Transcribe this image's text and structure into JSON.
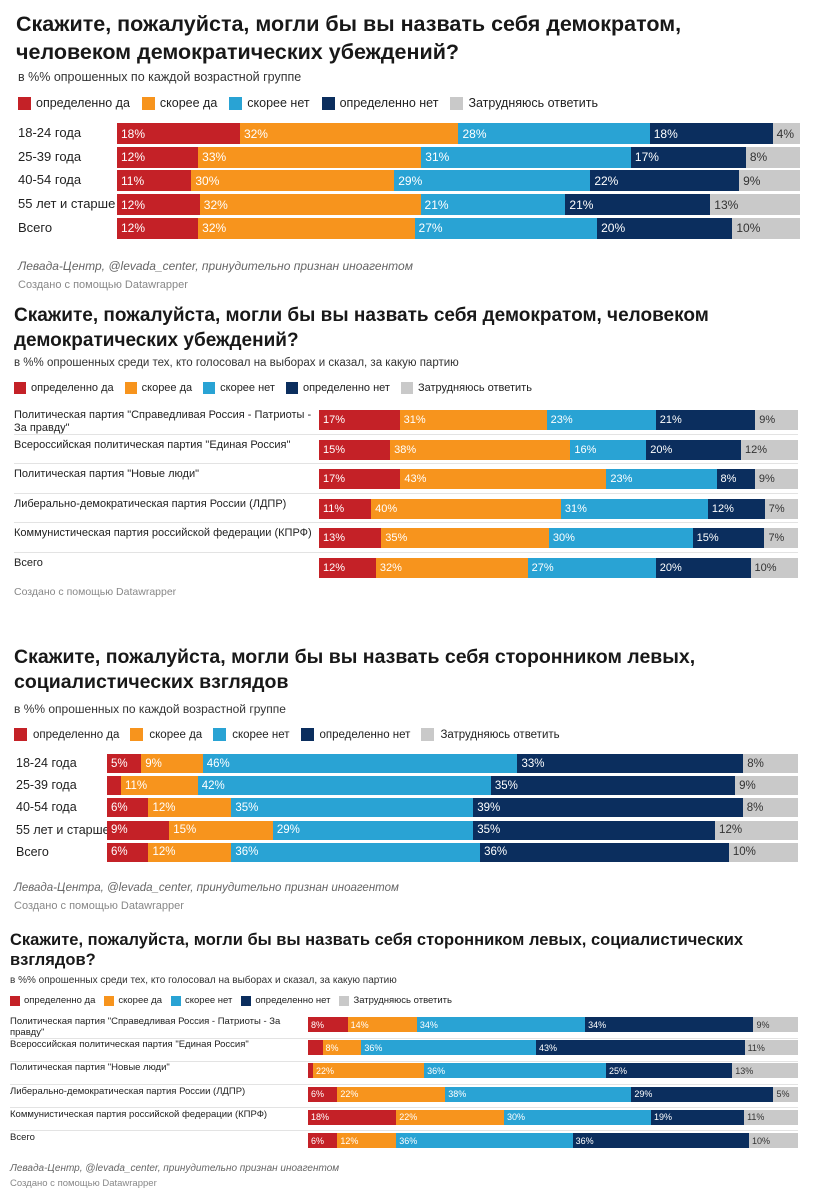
{
  "colors": {
    "definitely_yes": "#c42127",
    "rather_yes": "#f7941d",
    "rather_no": "#29a3d4",
    "definitely_no": "#0b2e5e",
    "hard_to_say": "#c9c9c9"
  },
  "legend": [
    "определенно да",
    "скорее да",
    "скорее нет",
    "определенно нет",
    "Затрудняюсь ответить"
  ],
  "chart_data": [
    {
      "type": "bar",
      "stacked": true,
      "orientation": "horizontal",
      "title": "Скажите, пожалуйста, могли бы вы назвать себя демократом, человеком демократических убеждений?",
      "subtitle": "в %% опрошенных по каждой возрастной группе",
      "categories": [
        "18-24 года",
        "25-39 года",
        "40-54 года",
        "55 лет и старше",
        "Всего"
      ],
      "series": [
        {
          "name": "определенно да",
          "values": [
            18,
            12,
            11,
            12,
            12
          ]
        },
        {
          "name": "скорее да",
          "values": [
            32,
            33,
            30,
            32,
            32
          ]
        },
        {
          "name": "скорее нет",
          "values": [
            28,
            31,
            29,
            21,
            27
          ]
        },
        {
          "name": "определенно нет",
          "values": [
            18,
            17,
            22,
            21,
            20
          ]
        },
        {
          "name": "Затрудняюсь ответить",
          "values": [
            4,
            8,
            9,
            13,
            10
          ]
        }
      ],
      "source": "Левада-Центр, @levada_center, принудительно признан иноагентом",
      "credit": "Создано с помощью Datawrapper"
    },
    {
      "type": "bar",
      "stacked": true,
      "orientation": "horizontal",
      "title": "Скажите, пожалуйста, могли бы вы назвать себя демократом, человеком демократических убеждений?",
      "subtitle": "в %% опрошенных среди тех, кто голосовал на выборах и сказал, за какую партию",
      "categories": [
        "Политическая партия \"Справедливая Россия - Патриоты - За правду\"",
        "Всероссийская политическая партия \"Единая Россия\"",
        "Политическая партия \"Новые люди\"",
        "Либерально-демократическая партия России (ЛДПР)",
        "Коммунистическая партия российской федерации (КПРФ)",
        "Всего"
      ],
      "series": [
        {
          "name": "определенно да",
          "values": [
            17,
            15,
            17,
            11,
            13,
            12
          ]
        },
        {
          "name": "скорее да",
          "values": [
            31,
            38,
            43,
            40,
            35,
            32
          ]
        },
        {
          "name": "скорее нет",
          "values": [
            23,
            16,
            23,
            31,
            30,
            27
          ]
        },
        {
          "name": "определенно нет",
          "values": [
            21,
            20,
            8,
            12,
            15,
            20
          ]
        },
        {
          "name": "Затрудняюсь ответить",
          "values": [
            9,
            12,
            9,
            7,
            7,
            10
          ]
        }
      ],
      "source": "",
      "credit": "Создано с помощью Datawrapper"
    },
    {
      "type": "bar",
      "stacked": true,
      "orientation": "horizontal",
      "title": "Скажите, пожалуйста, могли бы вы назвать себя сторонником левых, социалистических взглядов",
      "subtitle": "в %% опрошенных по каждой возрастной группе",
      "categories": [
        "18-24 года",
        "25-39 года",
        "40-54 года",
        "55 лет и старше",
        "Всего"
      ],
      "series": [
        {
          "name": "определенно да",
          "values": [
            5,
            2,
            6,
            9,
            6
          ]
        },
        {
          "name": "скорее да",
          "values": [
            9,
            11,
            12,
            15,
            12
          ]
        },
        {
          "name": "скорее нет",
          "values": [
            46,
            42,
            35,
            29,
            36
          ]
        },
        {
          "name": "определенно нет",
          "values": [
            33,
            35,
            39,
            35,
            36
          ]
        },
        {
          "name": "Затрудняюсь ответить",
          "values": [
            8,
            9,
            8,
            12,
            10
          ]
        }
      ],
      "labels": [
        [
          "5%",
          "9%",
          "46%",
          "33%",
          "8%"
        ],
        [
          "",
          "11%",
          "42%",
          "35%",
          "9%"
        ],
        [
          "6%",
          "12%",
          "35%",
          "39%",
          "8%"
        ],
        [
          "9%",
          "15%",
          "29%",
          "35%",
          "12%"
        ],
        [
          "6%",
          "12%",
          "36%",
          "36%",
          "10%"
        ]
      ],
      "source": "Левада-Центра, @levada_center, принудительно признан иноагентом",
      "credit": "Создано с помощью Datawrapper"
    },
    {
      "type": "bar",
      "stacked": true,
      "orientation": "horizontal",
      "title": "Скажите, пожалуйста, могли бы вы назвать себя сторонником левых, социалистических взглядов?",
      "subtitle": "в %% опрошенных среди тех, кто голосовал на выборах и сказал, за какую партию",
      "categories": [
        "Политическая партия \"Справедливая Россия - Патриоты - За правду\"",
        "Всероссийская политическая партия \"Единая Россия\"",
        "Политическая партия \"Новые люди\"",
        "Либерально-демократическая партия России (ЛДПР)",
        "Коммунистическая партия российской федерации (КПРФ)",
        "Всего"
      ],
      "series": [
        {
          "name": "определенно да",
          "values": [
            8,
            3,
            1,
            6,
            18,
            6
          ]
        },
        {
          "name": "скорее да",
          "values": [
            14,
            8,
            22,
            22,
            22,
            12
          ]
        },
        {
          "name": "скорее нет",
          "values": [
            34,
            36,
            36,
            38,
            30,
            36
          ]
        },
        {
          "name": "определенно нет",
          "values": [
            34,
            43,
            25,
            29,
            19,
            36
          ]
        },
        {
          "name": "Затрудняюсь ответить",
          "values": [
            9,
            11,
            13,
            5,
            11,
            10
          ]
        }
      ],
      "labels": [
        [
          "8%",
          "14%",
          "34%",
          "34%",
          "9%"
        ],
        [
          "",
          "8%",
          "36%",
          "43%",
          "11%"
        ],
        [
          "",
          "22%",
          "36%",
          "25%",
          "13%"
        ],
        [
          "6%",
          "22%",
          "38%",
          "29%",
          "5%"
        ],
        [
          "18%",
          "22%",
          "30%",
          "19%",
          "11%"
        ],
        [
          "6%",
          "12%",
          "36%",
          "36%",
          "10%"
        ]
      ],
      "source": "Левада-Центр, @levada_center, принудительно признан иноагентом",
      "credit": "Создано с помощью Datawrapper"
    }
  ]
}
